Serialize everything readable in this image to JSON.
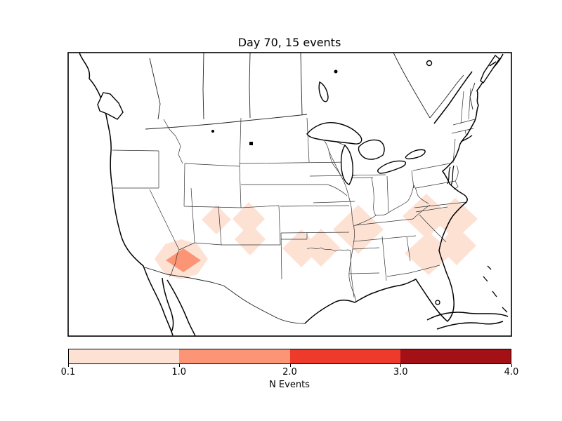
{
  "figure": {
    "title": "Day 70, 15 events",
    "background_color": "#ffffff"
  },
  "colorbar": {
    "label": "N Events",
    "tick_labels": [
      "0.1",
      "1.0",
      "2.0",
      "3.0",
      "4.0"
    ],
    "tick_positions": [
      0,
      0.25,
      0.5,
      0.75,
      1
    ],
    "segments": [
      {
        "range": "0.1-1.0",
        "color": "#fde2d4"
      },
      {
        "range": "1.0-2.0",
        "color": "#fb9575"
      },
      {
        "range": "2.0-3.0",
        "color": "#ee3a2b"
      },
      {
        "range": "3.0-4.0",
        "color": "#a31015"
      }
    ]
  },
  "chart_data": {
    "type": "heatmap",
    "title": "Day 70, 15 events",
    "day": 70,
    "total_events": 15,
    "colorbar_label": "N Events",
    "colorbar_ticks": [
      0.1,
      1.0,
      2.0,
      3.0,
      4.0
    ],
    "colormap": "Reds, 4 discrete bins",
    "basemap": "North America / contiguous United States with state and country borders",
    "legend_position": "bottom horizontal colorbar",
    "regions": [
      {
        "name": "utah-colorado-border",
        "n_events": 1,
        "fill": "#fde2d4",
        "points": [
          [
            308,
            292
          ],
          [
            329,
            313
          ],
          [
            308,
            334
          ],
          [
            287,
            313
          ]
        ]
      },
      {
        "name": "central-colorado-north",
        "n_events": 1,
        "fill": "#fde2d4",
        "points": [
          [
            354,
            288
          ],
          [
            377,
            312
          ],
          [
            354,
            336
          ],
          [
            331,
            312
          ]
        ]
      },
      {
        "name": "central-colorado-south",
        "n_events": 1,
        "fill": "#fde2d4",
        "points": [
          [
            356,
            318
          ],
          [
            378,
            341
          ],
          [
            356,
            364
          ],
          [
            334,
            341
          ]
        ]
      },
      {
        "name": "arizona-outer",
        "n_events": 1,
        "fill": "#fde2d4",
        "points": [
          [
            258,
            341
          ],
          [
            281,
            348
          ],
          [
            296,
            369
          ],
          [
            281,
            391
          ],
          [
            258,
            398
          ],
          [
            235,
            391
          ],
          [
            220,
            369
          ],
          [
            235,
            348
          ]
        ]
      },
      {
        "name": "arizona-core",
        "n_events": 2,
        "fill": "#fb9575",
        "points": [
          [
            261,
            354
          ],
          [
            286,
            371
          ],
          [
            261,
            388
          ],
          [
            236,
            371
          ]
        ]
      },
      {
        "name": "oklahoma-west",
        "n_events": 1,
        "fill": "#fde2d4",
        "points": [
          [
            429,
            327
          ],
          [
            456,
            354
          ],
          [
            429,
            381
          ],
          [
            402,
            354
          ]
        ]
      },
      {
        "name": "oklahoma-east",
        "n_events": 1,
        "fill": "#fde2d4",
        "points": [
          [
            457,
            326
          ],
          [
            484,
            353
          ],
          [
            457,
            380
          ],
          [
            430,
            353
          ]
        ]
      },
      {
        "name": "tennessee-mississippi-arkansas",
        "n_events": 1,
        "fill": "#fde2d4",
        "points": [
          [
            510,
            292
          ],
          [
            546,
            327
          ],
          [
            510,
            362
          ],
          [
            474,
            327
          ]
        ]
      },
      {
        "name": "southeast-northwest",
        "n_events": 1,
        "fill": "#fde2d4",
        "points": [
          [
            607,
            276
          ],
          [
            641,
            308
          ],
          [
            607,
            340
          ],
          [
            573,
            308
          ]
        ]
      },
      {
        "name": "southeast-northeast-carolina-coast",
        "n_events": 1,
        "fill": "#fde2d4",
        "points": [
          [
            648,
            282
          ],
          [
            680,
            312
          ],
          [
            648,
            342
          ],
          [
            616,
            312
          ]
        ]
      },
      {
        "name": "southeast-southwest-georgia",
        "n_events": 1,
        "fill": "#fde2d4",
        "points": [
          [
            610,
            330
          ],
          [
            644,
            361
          ],
          [
            610,
            392
          ],
          [
            576,
            361
          ]
        ]
      },
      {
        "name": "southeast-southeast-georgia-coast",
        "n_events": 1,
        "fill": "#fde2d4",
        "points": [
          [
            650,
            322
          ],
          [
            678,
            350
          ],
          [
            650,
            378
          ],
          [
            622,
            350
          ]
        ]
      }
    ]
  }
}
